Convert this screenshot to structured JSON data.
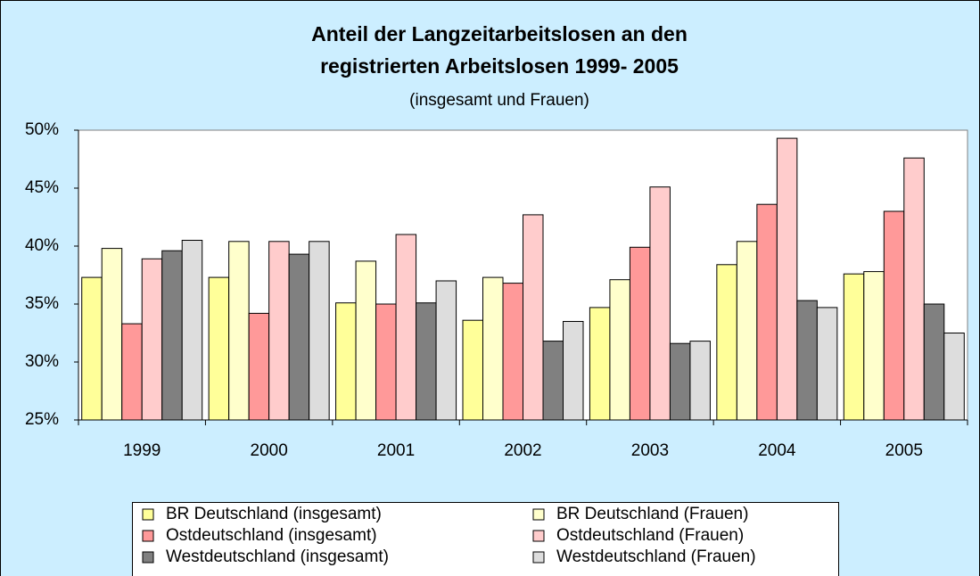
{
  "chart_data": {
    "type": "bar",
    "title": "Anteil der Langzeitarbeitslosen an den registrierten Arbeitslosen 1999- 2005",
    "subtitle": "(insgesamt und Frauen)",
    "categories": [
      "1999",
      "2000",
      "2001",
      "2002",
      "2003",
      "2004",
      "2005"
    ],
    "series": [
      {
        "name": "BR Deutschland (insgesamt)",
        "color": "#ffff99",
        "values": [
          37.3,
          37.3,
          35.1,
          33.6,
          34.7,
          38.4,
          37.6
        ]
      },
      {
        "name": "BR Deutschland (Frauen)",
        "color": "#ffffcc",
        "values": [
          39.8,
          40.4,
          38.7,
          37.3,
          37.1,
          40.4,
          37.8
        ]
      },
      {
        "name": "Ostdeutschland (insgesamt)",
        "color": "#ff9999",
        "values": [
          33.3,
          34.2,
          35.0,
          36.8,
          39.9,
          43.6,
          43.0
        ]
      },
      {
        "name": "Ostdeutschland (Frauen)",
        "color": "#ffcccc",
        "values": [
          38.9,
          40.4,
          41.0,
          42.7,
          45.1,
          49.3,
          47.6
        ]
      },
      {
        "name": "Westdeutschland (insgesamt)",
        "color": "#808080",
        "values": [
          39.6,
          39.3,
          35.1,
          31.8,
          31.6,
          35.3,
          35.0
        ]
      },
      {
        "name": "Westdeutschland (Frauen)",
        "color": "#dddddd",
        "values": [
          40.5,
          40.4,
          37.0,
          33.5,
          31.8,
          34.7,
          32.5
        ]
      }
    ],
    "ylim": [
      25,
      50
    ],
    "yticks": [
      {
        "value": 25,
        "label": "25%"
      },
      {
        "value": 30,
        "label": "30%"
      },
      {
        "value": 35,
        "label": "35%"
      },
      {
        "value": 40,
        "label": "40%"
      },
      {
        "value": 45,
        "label": "45%"
      },
      {
        "value": 50,
        "label": "50%"
      }
    ],
    "grid": false,
    "legend": "bottom"
  }
}
